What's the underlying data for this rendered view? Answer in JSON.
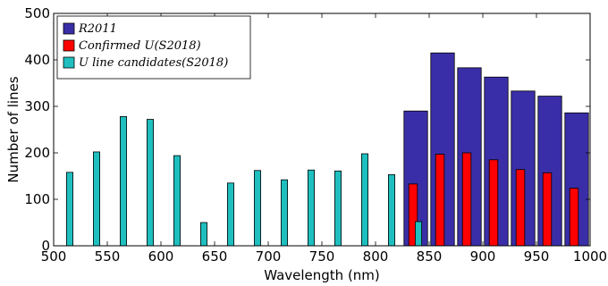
{
  "chart_data": {
    "type": "bar",
    "xlabel": "Wavelength (nm)",
    "ylabel": "Number of lines",
    "xlim": [
      500,
      1000
    ],
    "ylim": [
      0,
      500
    ],
    "xticks": [
      500,
      550,
      600,
      650,
      700,
      750,
      800,
      850,
      900,
      950,
      1000
    ],
    "yticks": [
      0,
      100,
      200,
      300,
      400,
      500
    ],
    "grid": false,
    "legend_position": "top-left",
    "series": [
      {
        "name": "R2011",
        "color": "#3a2ea8",
        "x": [
          837.5,
          862.5,
          887.5,
          912.5,
          937.5,
          962.5,
          987.5
        ],
        "values": [
          290,
          415,
          383,
          363,
          333,
          322,
          286
        ]
      },
      {
        "name": "Confirmed U(S2018)",
        "color": "#ff0000",
        "x": [
          835,
          860,
          885,
          910,
          935,
          960,
          985
        ],
        "values": [
          133,
          197,
          200,
          185,
          164,
          157,
          124
        ]
      },
      {
        "name": "U line candidates(S2018)",
        "color": "#1fbfbf",
        "x": [
          515,
          540,
          565,
          590,
          615,
          640,
          665,
          690,
          715,
          740,
          765,
          790,
          815,
          840
        ],
        "values": [
          158,
          202,
          278,
          272,
          194,
          50,
          135,
          162,
          142,
          163,
          161,
          198,
          153,
          52
        ]
      }
    ]
  }
}
